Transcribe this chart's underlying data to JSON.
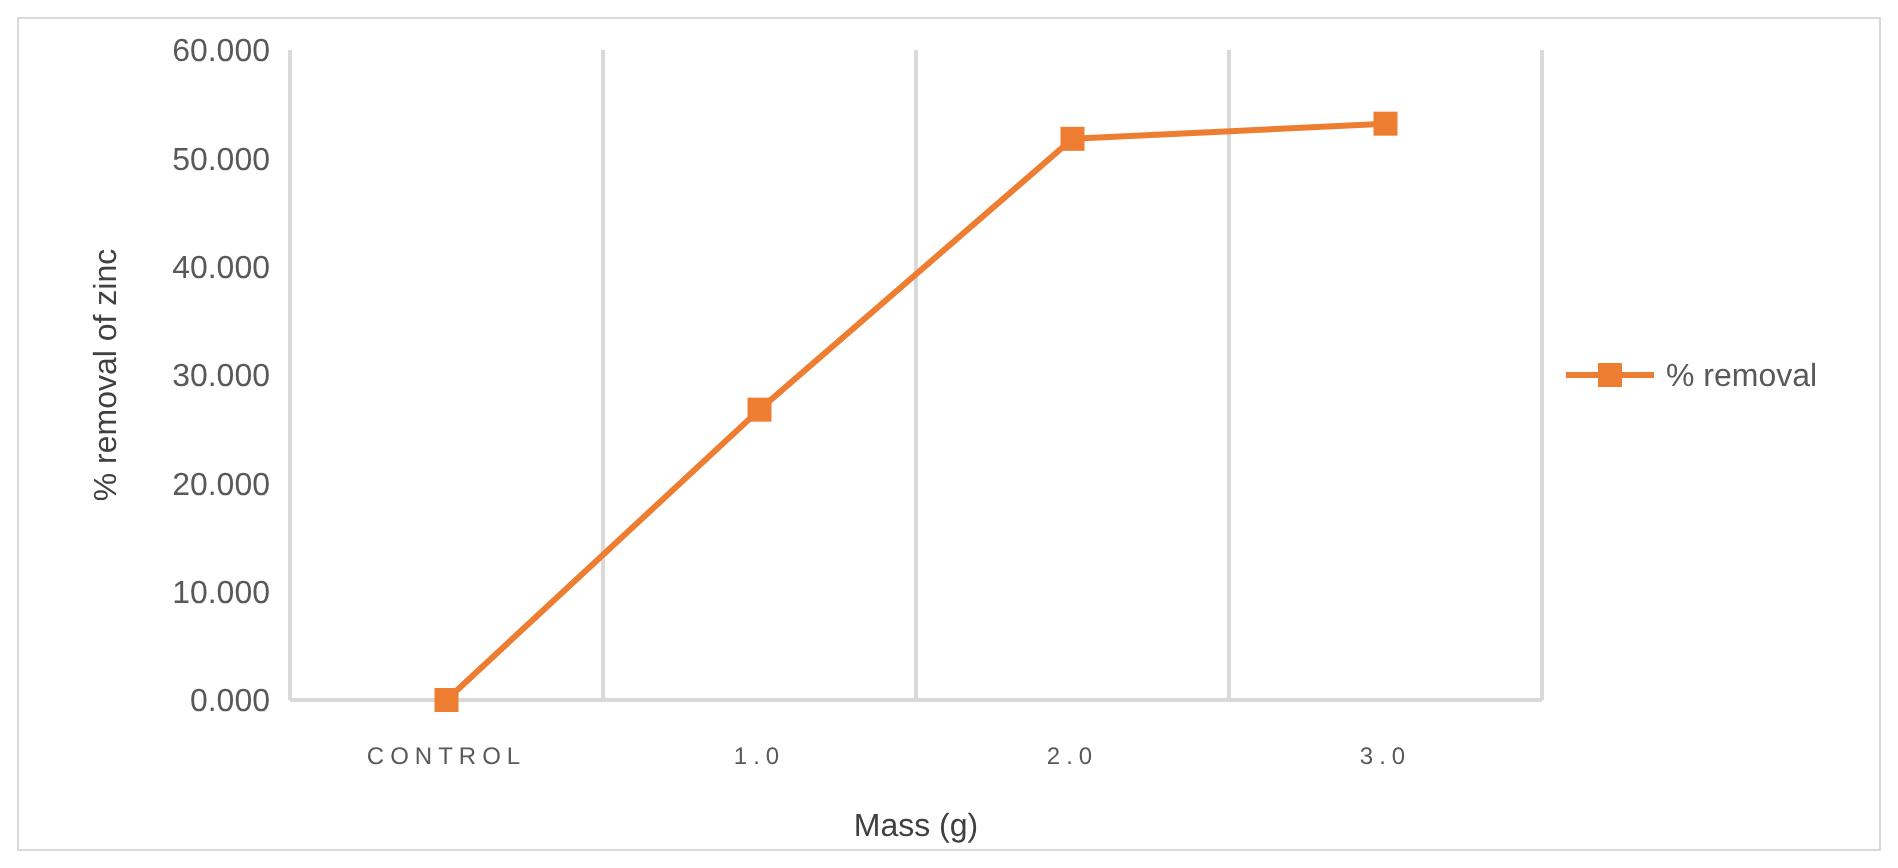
{
  "chart_data": {
    "type": "line",
    "xlabel": "Mass (g)",
    "ylabel": "% removal of zinc",
    "categories": [
      "CONTROL",
      "1.0",
      "2.0",
      "3.0"
    ],
    "series": [
      {
        "name": "% removal",
        "color": "#ed7d31",
        "values": [
          0,
          26.8,
          51.8,
          53.2
        ]
      }
    ],
    "ylim": [
      0,
      60
    ],
    "yticks": [
      {
        "value": 0,
        "label": "0.000"
      },
      {
        "value": 10,
        "label": "10.000"
      },
      {
        "value": 20,
        "label": "20.000"
      },
      {
        "value": 30,
        "label": "30.000"
      },
      {
        "value": 40,
        "label": "40.000"
      },
      {
        "value": 50,
        "label": "50.000"
      },
      {
        "value": 60,
        "label": "60.000"
      }
    ],
    "grid": "x",
    "legend": "right",
    "marker": "square",
    "line_style": "solid"
  }
}
